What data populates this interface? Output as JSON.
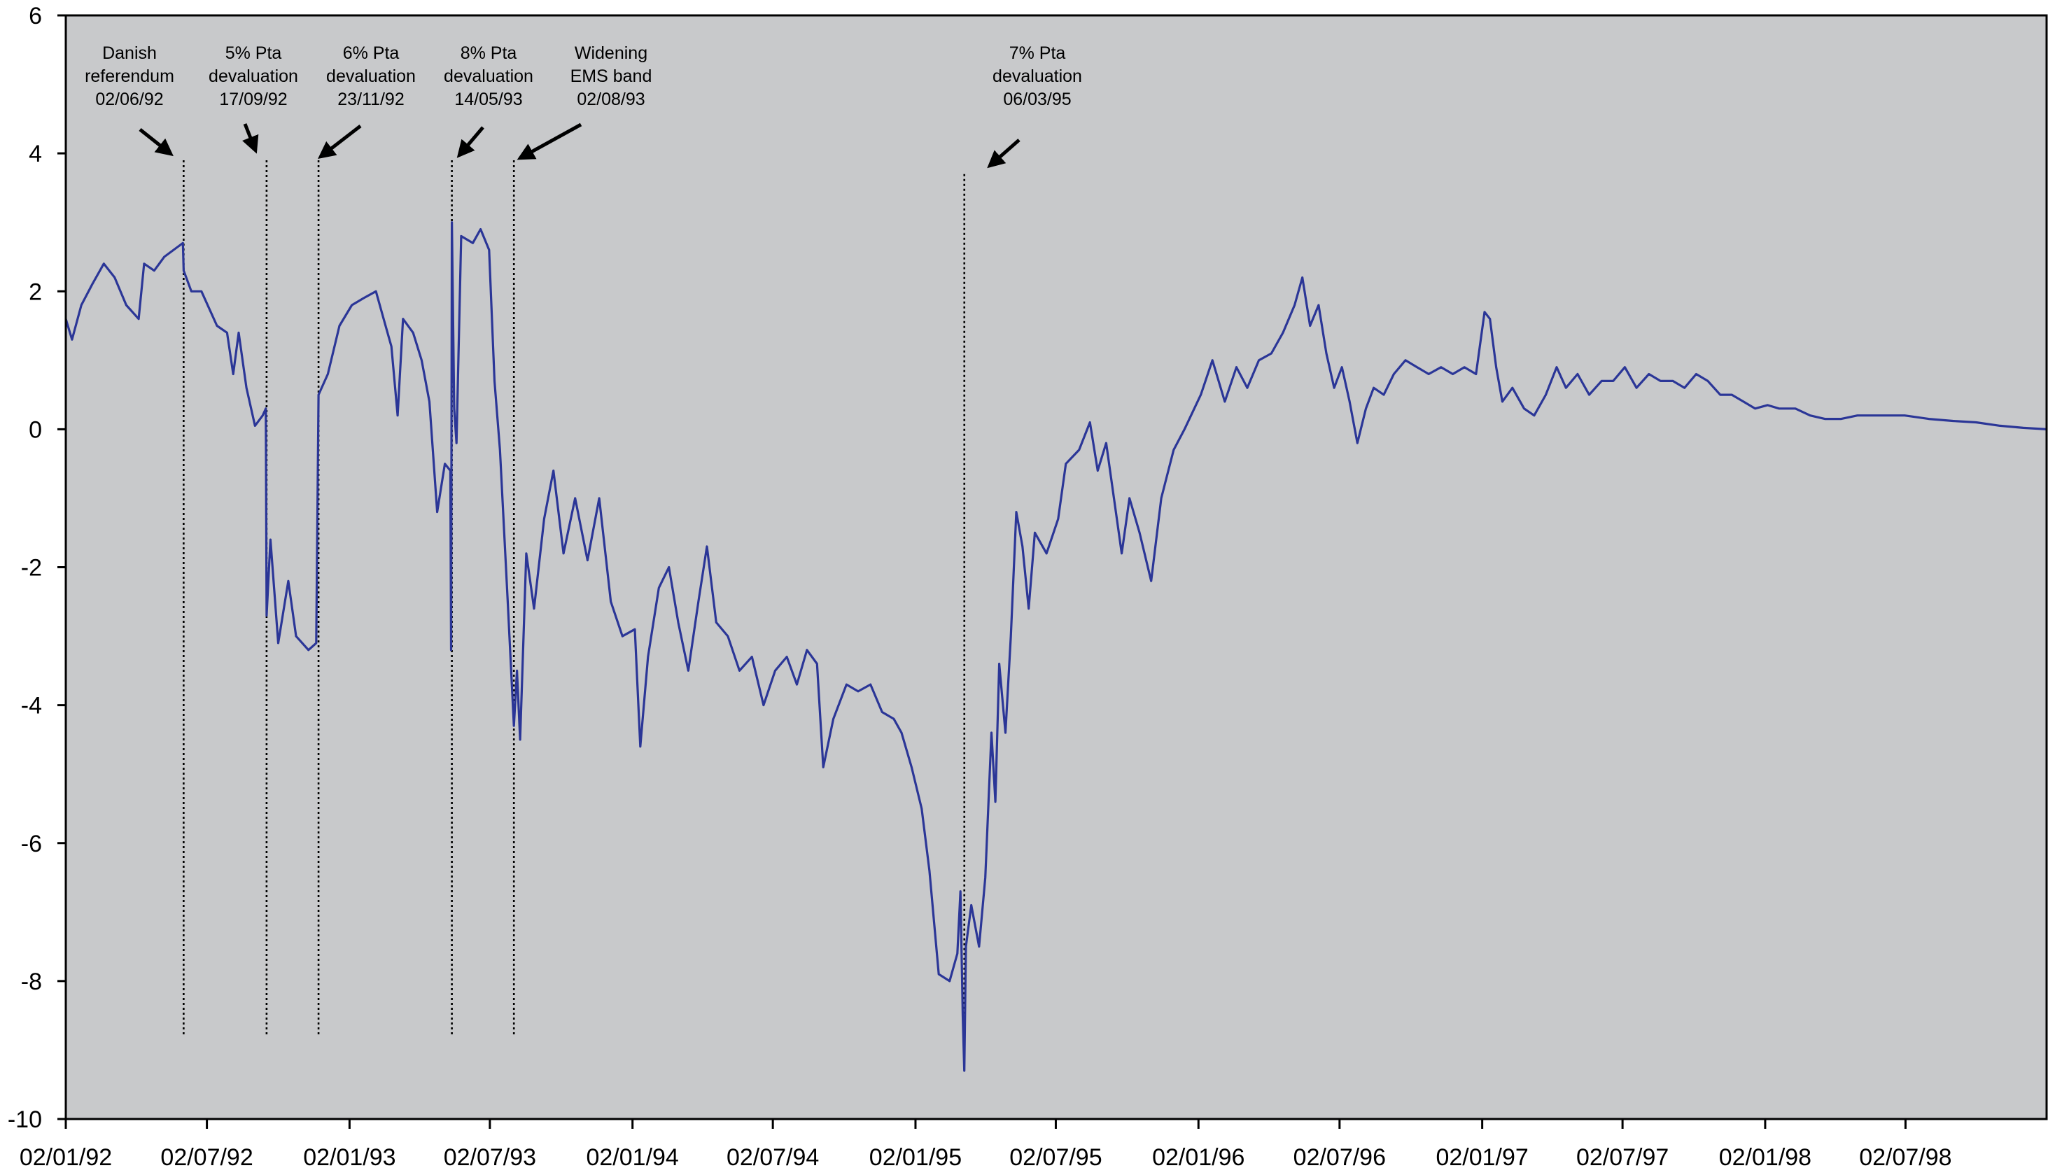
{
  "chart_data": {
    "type": "line",
    "title": "",
    "xlabel": "",
    "ylabel": "",
    "ylim": [
      -10,
      6
    ],
    "y_ticks": [
      6,
      4,
      2,
      0,
      -2,
      -4,
      -6,
      -8,
      -10
    ],
    "y_tick_labels": [
      "6",
      "4",
      "2",
      "0",
      "-2",
      "-4",
      "-6",
      "-8",
      "-10"
    ],
    "x_ticks": [
      "1992-01-02",
      "1992-07-02",
      "1993-01-02",
      "1993-07-02",
      "1994-01-02",
      "1994-07-02",
      "1995-01-02",
      "1995-07-02",
      "1996-01-02",
      "1996-07-02",
      "1997-01-02",
      "1997-07-02",
      "1998-01-02",
      "1998-07-02"
    ],
    "x_tick_labels": [
      "02/01/92",
      "02/07/92",
      "02/01/93",
      "02/07/93",
      "02/01/94",
      "02/07/94",
      "02/01/95",
      "02/07/95",
      "02/01/96",
      "02/07/96",
      "02/01/97",
      "02/07/97",
      "02/01/98",
      "02/07/98"
    ],
    "xlim": [
      "1992-01-02",
      "1998-12-31"
    ],
    "grid": false,
    "background_color": "#c8c9cb",
    "series": [
      {
        "color": "#2b3697",
        "points": [
          [
            "1992-01-02",
            1.6
          ],
          [
            "1992-01-10",
            1.3
          ],
          [
            "1992-01-22",
            1.8
          ],
          [
            "1992-02-05",
            2.1
          ],
          [
            "1992-02-20",
            2.4
          ],
          [
            "1992-03-05",
            2.2
          ],
          [
            "1992-03-20",
            1.8
          ],
          [
            "1992-04-05",
            1.6
          ],
          [
            "1992-04-12",
            2.4
          ],
          [
            "1992-04-25",
            2.3
          ],
          [
            "1992-05-08",
            2.5
          ],
          [
            "1992-05-20",
            2.6
          ],
          [
            "1992-06-01",
            2.7
          ],
          [
            "1992-06-02",
            2.3
          ],
          [
            "1992-06-12",
            2.0
          ],
          [
            "1992-06-25",
            2.0
          ],
          [
            "1992-07-15",
            1.5
          ],
          [
            "1992-07-28",
            1.4
          ],
          [
            "1992-08-05",
            0.8
          ],
          [
            "1992-08-12",
            1.4
          ],
          [
            "1992-08-22",
            0.6
          ],
          [
            "1992-09-02",
            0.05
          ],
          [
            "1992-09-12",
            0.2
          ],
          [
            "1992-09-16",
            0.3
          ],
          [
            "1992-09-17",
            -2.7
          ],
          [
            "1992-09-22",
            -1.6
          ],
          [
            "1992-10-02",
            -3.1
          ],
          [
            "1992-10-15",
            -2.2
          ],
          [
            "1992-10-25",
            -3.0
          ],
          [
            "1992-11-10",
            -3.2
          ],
          [
            "1992-11-20",
            -3.1
          ],
          [
            "1992-11-23",
            0.5
          ],
          [
            "1992-12-05",
            0.8
          ],
          [
            "1992-12-20",
            1.5
          ],
          [
            "1993-01-05",
            1.8
          ],
          [
            "1993-01-20",
            1.9
          ],
          [
            "1993-02-05",
            2.0
          ],
          [
            "1993-02-15",
            1.6
          ],
          [
            "1993-02-25",
            1.2
          ],
          [
            "1993-03-05",
            0.2
          ],
          [
            "1993-03-12",
            1.6
          ],
          [
            "1993-03-25",
            1.4
          ],
          [
            "1993-04-05",
            1.0
          ],
          [
            "1993-04-15",
            0.4
          ],
          [
            "1993-04-25",
            -1.2
          ],
          [
            "1993-05-05",
            -0.5
          ],
          [
            "1993-05-12",
            -0.6
          ],
          [
            "1993-05-13",
            -3.2
          ],
          [
            "1993-05-14",
            3.0
          ],
          [
            "1993-05-17",
            0.3
          ],
          [
            "1993-05-20",
            -0.2
          ],
          [
            "1993-05-26",
            2.8
          ],
          [
            "1993-06-10",
            2.7
          ],
          [
            "1993-06-20",
            2.9
          ],
          [
            "1993-07-01",
            2.6
          ],
          [
            "1993-07-08",
            0.7
          ],
          [
            "1993-07-15",
            -0.3
          ],
          [
            "1993-07-25",
            -2.5
          ],
          [
            "1993-08-02",
            -4.3
          ],
          [
            "1993-08-06",
            -3.5
          ],
          [
            "1993-08-10",
            -4.5
          ],
          [
            "1993-08-18",
            -1.8
          ],
          [
            "1993-08-28",
            -2.6
          ],
          [
            "1993-09-10",
            -1.3
          ],
          [
            "1993-09-22",
            -0.6
          ],
          [
            "1993-10-05",
            -1.8
          ],
          [
            "1993-10-20",
            -1.0
          ],
          [
            "1993-11-05",
            -1.9
          ],
          [
            "1993-11-20",
            -1.0
          ],
          [
            "1993-12-05",
            -2.5
          ],
          [
            "1993-12-20",
            -3.0
          ],
          [
            "1994-01-05",
            -2.9
          ],
          [
            "1994-01-12",
            -4.6
          ],
          [
            "1994-01-22",
            -3.3
          ],
          [
            "1994-02-05",
            -2.3
          ],
          [
            "1994-02-18",
            -2.0
          ],
          [
            "1994-03-02",
            -2.8
          ],
          [
            "1994-03-15",
            -3.5
          ],
          [
            "1994-03-28",
            -2.5
          ],
          [
            "1994-04-08",
            -1.7
          ],
          [
            "1994-04-20",
            -2.8
          ],
          [
            "1994-05-05",
            -3.0
          ],
          [
            "1994-05-20",
            -3.5
          ],
          [
            "1994-06-05",
            -3.3
          ],
          [
            "1994-06-20",
            -4.0
          ],
          [
            "1994-07-05",
            -3.5
          ],
          [
            "1994-07-20",
            -3.3
          ],
          [
            "1994-08-02",
            -3.7
          ],
          [
            "1994-08-15",
            -3.2
          ],
          [
            "1994-08-28",
            -3.4
          ],
          [
            "1994-09-05",
            -4.9
          ],
          [
            "1994-09-18",
            -4.2
          ],
          [
            "1994-10-05",
            -3.7
          ],
          [
            "1994-10-20",
            -3.8
          ],
          [
            "1994-11-05",
            -3.7
          ],
          [
            "1994-11-20",
            -4.1
          ],
          [
            "1994-12-05",
            -4.2
          ],
          [
            "1994-12-15",
            -4.4
          ],
          [
            "1994-12-28",
            -4.9
          ],
          [
            "1995-01-10",
            -5.5
          ],
          [
            "1995-01-20",
            -6.4
          ],
          [
            "1995-02-01",
            -7.9
          ],
          [
            "1995-02-15",
            -8.0
          ],
          [
            "1995-02-25",
            -7.6
          ],
          [
            "1995-03-01",
            -6.7
          ],
          [
            "1995-03-04",
            -8.5
          ],
          [
            "1995-03-06",
            -9.3
          ],
          [
            "1995-03-08",
            -7.5
          ],
          [
            "1995-03-15",
            -6.9
          ],
          [
            "1995-03-25",
            -7.5
          ],
          [
            "1995-04-02",
            -6.5
          ],
          [
            "1995-04-10",
            -4.4
          ],
          [
            "1995-04-15",
            -5.4
          ],
          [
            "1995-04-20",
            -3.4
          ],
          [
            "1995-04-28",
            -4.4
          ],
          [
            "1995-05-05",
            -3.0
          ],
          [
            "1995-05-12",
            -1.2
          ],
          [
            "1995-05-20",
            -1.7
          ],
          [
            "1995-05-28",
            -2.6
          ],
          [
            "1995-06-05",
            -1.5
          ],
          [
            "1995-06-20",
            -1.8
          ],
          [
            "1995-07-05",
            -1.3
          ],
          [
            "1995-07-15",
            -0.5
          ],
          [
            "1995-08-01",
            -0.3
          ],
          [
            "1995-08-15",
            0.1
          ],
          [
            "1995-08-25",
            -0.6
          ],
          [
            "1995-09-05",
            -0.2
          ],
          [
            "1995-09-15",
            -1.0
          ],
          [
            "1995-09-25",
            -1.8
          ],
          [
            "1995-10-05",
            -1.0
          ],
          [
            "1995-10-18",
            -1.5
          ],
          [
            "1995-11-02",
            -2.2
          ],
          [
            "1995-11-15",
            -1.0
          ],
          [
            "1995-12-01",
            -0.3
          ],
          [
            "1995-12-15",
            0.0
          ],
          [
            "1996-01-05",
            0.5
          ],
          [
            "1996-01-20",
            1.0
          ],
          [
            "1996-02-05",
            0.4
          ],
          [
            "1996-02-20",
            0.9
          ],
          [
            "1996-03-05",
            0.6
          ],
          [
            "1996-03-20",
            1.0
          ],
          [
            "1996-04-05",
            1.1
          ],
          [
            "1996-04-20",
            1.4
          ],
          [
            "1996-05-05",
            1.8
          ],
          [
            "1996-05-15",
            2.2
          ],
          [
            "1996-05-25",
            1.5
          ],
          [
            "1996-06-05",
            1.8
          ],
          [
            "1996-06-15",
            1.1
          ],
          [
            "1996-06-25",
            0.6
          ],
          [
            "1996-07-05",
            0.9
          ],
          [
            "1996-07-15",
            0.4
          ],
          [
            "1996-07-25",
            -0.2
          ],
          [
            "1996-08-05",
            0.3
          ],
          [
            "1996-08-15",
            0.6
          ],
          [
            "1996-08-28",
            0.5
          ],
          [
            "1996-09-10",
            0.8
          ],
          [
            "1996-09-25",
            1.0
          ],
          [
            "1996-10-10",
            0.9
          ],
          [
            "1996-10-25",
            0.8
          ],
          [
            "1996-11-10",
            0.9
          ],
          [
            "1996-11-25",
            0.8
          ],
          [
            "1996-12-10",
            0.9
          ],
          [
            "1996-12-25",
            0.8
          ],
          [
            "1997-01-05",
            1.7
          ],
          [
            "1997-01-12",
            1.6
          ],
          [
            "1997-01-20",
            0.9
          ],
          [
            "1997-01-28",
            0.4
          ],
          [
            "1997-02-10",
            0.6
          ],
          [
            "1997-02-25",
            0.3
          ],
          [
            "1997-03-10",
            0.2
          ],
          [
            "1997-03-25",
            0.5
          ],
          [
            "1997-04-08",
            0.9
          ],
          [
            "1997-04-20",
            0.6
          ],
          [
            "1997-05-05",
            0.8
          ],
          [
            "1997-05-20",
            0.5
          ],
          [
            "1997-06-05",
            0.7
          ],
          [
            "1997-06-20",
            0.7
          ],
          [
            "1997-07-05",
            0.9
          ],
          [
            "1997-07-20",
            0.6
          ],
          [
            "1997-08-05",
            0.8
          ],
          [
            "1997-08-20",
            0.7
          ],
          [
            "1997-09-05",
            0.7
          ],
          [
            "1997-09-20",
            0.6
          ],
          [
            "1997-10-05",
            0.8
          ],
          [
            "1997-10-20",
            0.7
          ],
          [
            "1997-11-05",
            0.5
          ],
          [
            "1997-11-20",
            0.5
          ],
          [
            "1997-12-05",
            0.4
          ],
          [
            "1997-12-20",
            0.3
          ],
          [
            "1998-01-05",
            0.35
          ],
          [
            "1998-01-20",
            0.3
          ],
          [
            "1998-02-10",
            0.3
          ],
          [
            "1998-03-01",
            0.2
          ],
          [
            "1998-03-20",
            0.15
          ],
          [
            "1998-04-10",
            0.15
          ],
          [
            "1998-05-01",
            0.2
          ],
          [
            "1998-06-01",
            0.2
          ],
          [
            "1998-07-01",
            0.2
          ],
          [
            "1998-08-01",
            0.15
          ],
          [
            "1998-09-01",
            0.12
          ],
          [
            "1998-10-01",
            0.1
          ],
          [
            "1998-11-01",
            0.05
          ],
          [
            "1998-12-01",
            0.02
          ],
          [
            "1998-12-31",
            0.0
          ]
        ]
      }
    ],
    "annotations": [
      {
        "date": "1992-06-02",
        "lines": [
          "Danish",
          "referendum",
          "02/06/92"
        ],
        "y_top": 3.9,
        "y_bottom": -8.8
      },
      {
        "date": "1992-09-17",
        "lines": [
          "5% Pta",
          "devaluation",
          "17/09/92"
        ],
        "y_top": 3.9,
        "y_bottom": -8.8
      },
      {
        "date": "1992-11-23",
        "lines": [
          "6% Pta",
          "devaluation",
          "23/11/92"
        ],
        "y_top": 3.9,
        "y_bottom": -8.8
      },
      {
        "date": "1993-05-14",
        "lines": [
          "8% Pta",
          "devaluation",
          "14/05/93"
        ],
        "y_top": 3.9,
        "y_bottom": -8.8
      },
      {
        "date": "1993-08-02",
        "lines": [
          "Widening",
          "EMS band",
          "02/08/93"
        ],
        "y_top": 3.9,
        "y_bottom": -8.8
      },
      {
        "date": "1995-03-06",
        "lines": [
          "7% Pta",
          "devaluation",
          "06/03/95"
        ],
        "y_top": 3.7,
        "y_bottom": -8.8
      }
    ]
  }
}
